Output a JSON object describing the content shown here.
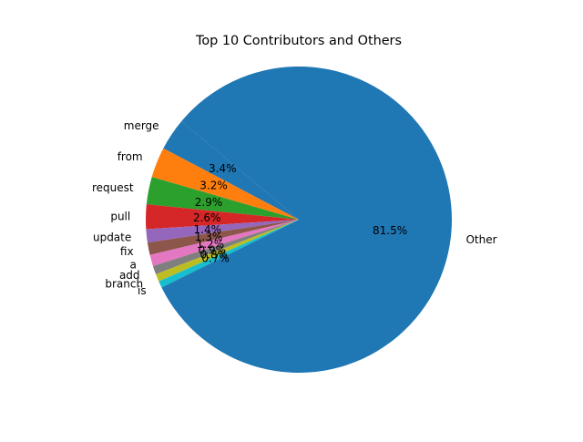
{
  "chart_data": {
    "type": "pie",
    "title": "Top 10 Contributors and Others",
    "labels": [
      "merge",
      "from",
      "request",
      "pull",
      "update",
      "fix",
      "a",
      "add",
      "branch",
      "is",
      "Other"
    ],
    "values": [
      3.4,
      3.2,
      2.9,
      2.6,
      1.4,
      1.3,
      1.2,
      0.9,
      0.8,
      0.7,
      81.5
    ],
    "pct_labels": [
      "3.4%",
      "3.2%",
      "2.9%",
      "2.6%",
      "1.4%",
      "1.3%",
      "1.2%",
      "0.9%",
      "0.8%",
      "0.7%",
      "81.5%"
    ],
    "colors": [
      "#1f77b4",
      "#ff7f0e",
      "#2ca02c",
      "#d62728",
      "#9467bd",
      "#8c564b",
      "#e377c2",
      "#7f7f7f",
      "#bcbd22",
      "#17becf",
      "#1f77b4"
    ],
    "start_angle_deg": 140,
    "direction": "counterclockwise",
    "legend": "none"
  }
}
